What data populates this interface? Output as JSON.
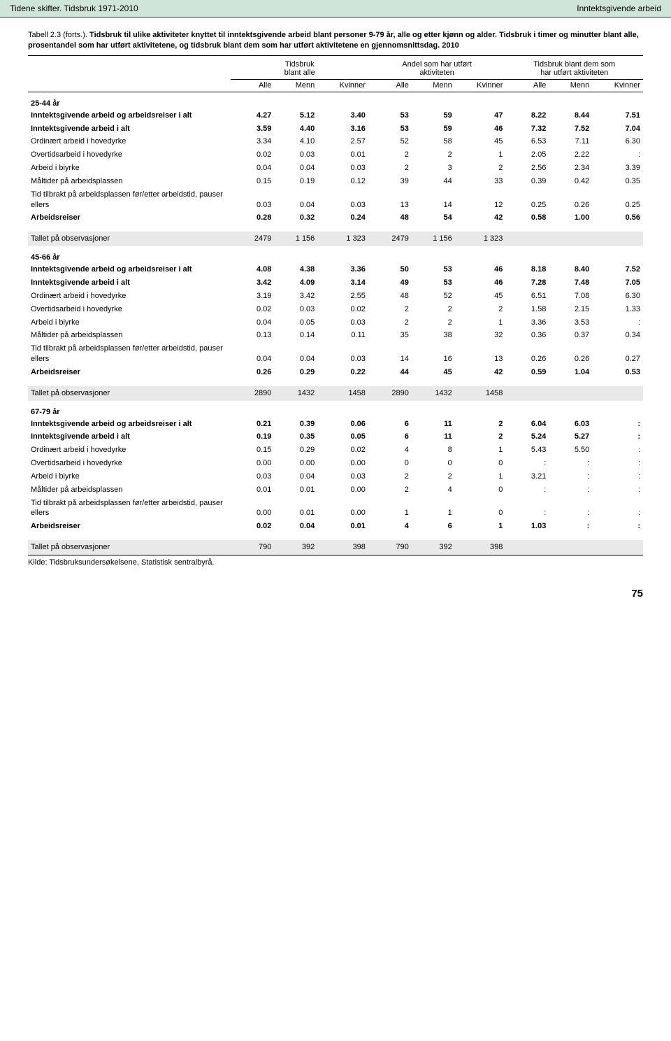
{
  "header": {
    "left": "Tidene skifter. Tidsbruk 1971-2010",
    "right": "Inntektsgivende arbeid"
  },
  "caption": {
    "lead": "Tabell 2.3 (forts.).",
    "title": "Tidsbruk til ulike aktiviteter knyttet til inntektsgivende arbeid blant personer 9-79 år, alle og etter kjønn og alder.",
    "sub": "Tidsbruk i timer og minutter blant alle, prosentandel som har utført aktivitetene, og tidsbruk blant dem som har utført aktivitetene en gjennomsnittsdag. 2010"
  },
  "groups": [
    "Tidsbruk\nblant alle",
    "Andel som har utført\naktiviteten",
    "Tidsbruk blant dem som\nhar utført aktiviteten"
  ],
  "cols": [
    "Alle",
    "Menn",
    "Kvinner",
    "Alle",
    "Menn",
    "Kvinner",
    "Alle",
    "Menn",
    "Kvinner"
  ],
  "sections": [
    {
      "title": "25-44 år",
      "rows": [
        {
          "l": "Inntektsgivende arbeid og arbeidsreiser i alt",
          "b": true,
          "v": [
            "4.27",
            "5.12",
            "3.40",
            "53",
            "59",
            "47",
            "8.22",
            "8.44",
            "7.51"
          ]
        },
        {
          "l": "Inntektsgivende arbeid i alt",
          "b": true,
          "v": [
            "3.59",
            "4.40",
            "3.16",
            "53",
            "59",
            "46",
            "7.32",
            "7.52",
            "7.04"
          ]
        },
        {
          "l": "Ordinært arbeid i hovedyrke",
          "v": [
            "3.34",
            "4.10",
            "2.57",
            "52",
            "58",
            "45",
            "6.53",
            "7.11",
            "6.30"
          ]
        },
        {
          "l": "Overtidsarbeid i hovedyrke",
          "v": [
            "0.02",
            "0.03",
            "0.01",
            "2",
            "2",
            "1",
            "2.05",
            "2.22",
            ":"
          ]
        },
        {
          "l": "Arbeid i biyrke",
          "v": [
            "0.04",
            "0.04",
            "0.03",
            "2",
            "3",
            "2",
            "2.56",
            "2.34",
            "3.39"
          ]
        },
        {
          "l": "Måltider på arbeidsplassen",
          "v": [
            "0.15",
            "0.19",
            "0.12",
            "39",
            "44",
            "33",
            "0.39",
            "0.42",
            "0.35"
          ]
        },
        {
          "l": "Tid tilbrakt på arbeidsplassen før/etter arbeidstid, pauser ellers",
          "v": [
            "0.03",
            "0.04",
            "0.03",
            "13",
            "14",
            "12",
            "0.25",
            "0.26",
            "0.25"
          ]
        },
        {
          "l": "Arbeidsreiser",
          "b": true,
          "v": [
            "0.28",
            "0.32",
            "0.24",
            "48",
            "54",
            "42",
            "0.58",
            "1.00",
            "0.56"
          ]
        }
      ],
      "obs": {
        "l": "Tallet på observasjoner",
        "v": [
          "2479",
          "1 156",
          "1 323",
          "2479",
          "1 156",
          "1 323",
          "",
          "",
          ""
        ]
      }
    },
    {
      "title": "45-66 år",
      "rows": [
        {
          "l": "Inntektsgivende arbeid og arbeidsreiser i alt",
          "b": true,
          "v": [
            "4.08",
            "4.38",
            "3.36",
            "50",
            "53",
            "46",
            "8.18",
            "8.40",
            "7.52"
          ]
        },
        {
          "l": "Inntektsgivende arbeid i alt",
          "b": true,
          "v": [
            "3.42",
            "4.09",
            "3.14",
            "49",
            "53",
            "46",
            "7.28",
            "7.48",
            "7.05"
          ]
        },
        {
          "l": "Ordinært arbeid i hovedyrke",
          "v": [
            "3.19",
            "3.42",
            "2.55",
            "48",
            "52",
            "45",
            "6.51",
            "7.08",
            "6.30"
          ]
        },
        {
          "l": "Overtidsarbeid i hovedyrke",
          "v": [
            "0.02",
            "0.03",
            "0.02",
            "2",
            "2",
            "2",
            "1.58",
            "2.15",
            "1.33"
          ]
        },
        {
          "l": "Arbeid i biyrke",
          "v": [
            "0.04",
            "0.05",
            "0.03",
            "2",
            "2",
            "1",
            "3.36",
            "3.53",
            ":"
          ]
        },
        {
          "l": "Måltider på arbeidsplassen",
          "v": [
            "0.13",
            "0.14",
            "0.11",
            "35",
            "38",
            "32",
            "0.36",
            "0.37",
            "0.34"
          ]
        },
        {
          "l": "Tid tilbrakt på arbeidsplassen før/etter arbeidstid, pauser ellers",
          "v": [
            "0.04",
            "0.04",
            "0.03",
            "14",
            "16",
            "13",
            "0.26",
            "0.26",
            "0.27"
          ]
        },
        {
          "l": "Arbeidsreiser",
          "b": true,
          "v": [
            "0.26",
            "0.29",
            "0.22",
            "44",
            "45",
            "42",
            "0.59",
            "1.04",
            "0.53"
          ]
        }
      ],
      "obs": {
        "l": "Tallet på observasjoner",
        "v": [
          "2890",
          "1432",
          "1458",
          "2890",
          "1432",
          "1458",
          "",
          "",
          ""
        ]
      }
    },
    {
      "title": "67-79 år",
      "rows": [
        {
          "l": "Inntektsgivende arbeid og arbeidsreiser i alt",
          "b": true,
          "v": [
            "0.21",
            "0.39",
            "0.06",
            "6",
            "11",
            "2",
            "6.04",
            "6.03",
            ":"
          ]
        },
        {
          "l": "Inntektsgivende arbeid i alt",
          "b": true,
          "v": [
            "0.19",
            "0.35",
            "0.05",
            "6",
            "11",
            "2",
            "5.24",
            "5.27",
            ":"
          ]
        },
        {
          "l": "Ordinært arbeid i hovedyrke",
          "v": [
            "0.15",
            "0.29",
            "0.02",
            "4",
            "8",
            "1",
            "5.43",
            "5.50",
            ":"
          ]
        },
        {
          "l": "Overtidsarbeid i hovedyrke",
          "v": [
            "0.00",
            "0.00",
            "0.00",
            "0",
            "0",
            "0",
            ":",
            ":",
            ":"
          ]
        },
        {
          "l": "Arbeid i biyrke",
          "v": [
            "0.03",
            "0.04",
            "0.03",
            "2",
            "2",
            "1",
            "3.21",
            ":",
            ":"
          ]
        },
        {
          "l": "Måltider på arbeidsplassen",
          "v": [
            "0.01",
            "0.01",
            "0.00",
            "2",
            "4",
            "0",
            ":",
            ":",
            ":"
          ]
        },
        {
          "l": "Tid tilbrakt på arbeidsplassen før/etter arbeidstid, pauser ellers",
          "v": [
            "0.00",
            "0.01",
            "0.00",
            "1",
            "1",
            "0",
            ":",
            ":",
            ":"
          ]
        },
        {
          "l": "Arbeidsreiser",
          "b": true,
          "v": [
            "0.02",
            "0.04",
            "0.01",
            "4",
            "6",
            "1",
            "1.03",
            ":",
            ":"
          ]
        }
      ],
      "obs": {
        "l": "Tallet på observasjoner",
        "v": [
          "790",
          "392",
          "398",
          "790",
          "392",
          "398",
          "",
          "",
          ""
        ]
      }
    }
  ],
  "source": "Kilde: Tidsbruksundersøkelsene, Statistisk sentralbyrå.",
  "pageNumber": "75"
}
